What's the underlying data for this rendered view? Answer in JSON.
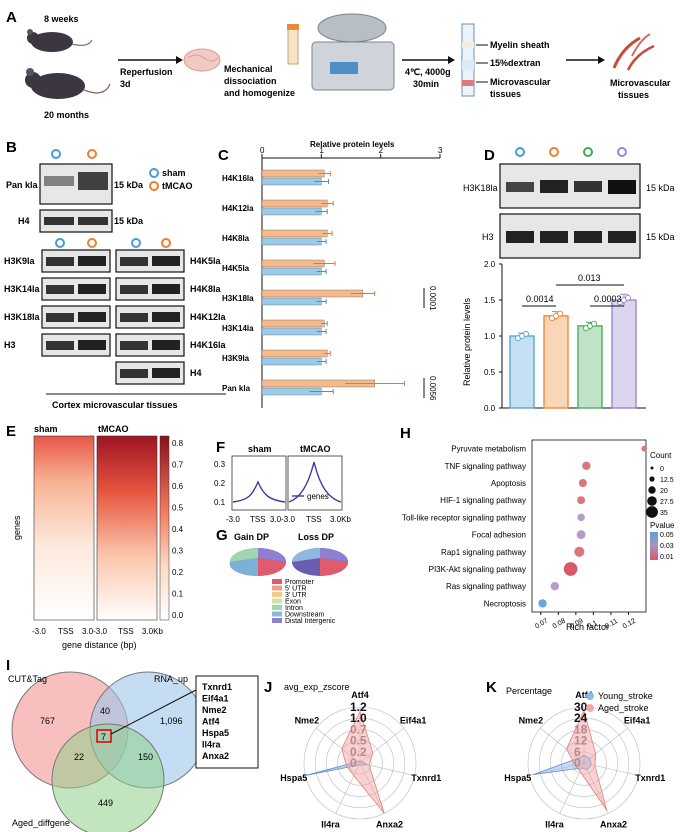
{
  "panelA": {
    "label": "A",
    "age_young": "8 weeks",
    "age_old": "20 months",
    "step1": [
      "Reperfusion",
      "3d"
    ],
    "step2": [
      "Mechanical",
      "dissociation",
      "and homogenize"
    ],
    "step3": [
      "4℃, 4000g",
      "30min"
    ],
    "layers": [
      "Myelin sheath",
      "15%dextran",
      "Microvascular",
      "tissues"
    ],
    "result": [
      "Microvascular",
      "tissues"
    ]
  },
  "panelB": {
    "label": "B",
    "legend": [
      "sham",
      "tMCAO"
    ],
    "blots_top": [
      {
        "name": "Pan kla",
        "kda": "15 kDa"
      },
      {
        "name": "H4",
        "kda": "15 kDa"
      }
    ],
    "left_blots": [
      "H3K9la",
      "H3K14la",
      "H3K18la",
      "H3"
    ],
    "right_blots": [
      "H4K5la",
      "H4K8la",
      "H4K12la",
      "H4K16la",
      "H4"
    ],
    "footer": "Cortex microvascular tissues"
  },
  "panelC": {
    "label": "C"
  },
  "panelD": {
    "label": "D",
    "blots": [
      {
        "name": "H3K18la",
        "kda": "15 kDa"
      },
      {
        "name": "H3",
        "kda": "15 kDa"
      }
    ],
    "pvals": [
      "0.0014",
      "0.013",
      "0.0003"
    ]
  },
  "panelE": {
    "label": "E",
    "cols": [
      "sham",
      "tMCAO"
    ],
    "ylabel": "genes",
    "xticks": [
      "-3.0",
      "TSS",
      "3.0-3.0",
      "TSS",
      "3.0Kb"
    ],
    "xlabel": "gene distance (bp)",
    "scale": [
      "0.8",
      "0.7",
      "0.6",
      "0.5",
      "0.4",
      "0.3",
      "0.2",
      "0.1",
      "0.0"
    ]
  },
  "panelF": {
    "label": "F",
    "cols": [
      "sham",
      "tMCAO"
    ],
    "yticks": [
      "0.3",
      "0.2",
      "0.1"
    ],
    "xticks": [
      "-3.0",
      "TSS",
      "3.0-3.0",
      "TSS",
      "3.0Kb"
    ],
    "legend": "genes"
  },
  "panelG": {
    "label": "G",
    "titles": [
      "Gain DP",
      "Loss DP"
    ],
    "legend": [
      "Promoter",
      "5' UTR",
      "3' UTR",
      "Exon",
      "Intron",
      "Downstream",
      "Distal Intergenic"
    ],
    "colors": [
      "#e15b6e",
      "#f0a07c",
      "#f2c98a",
      "#cfe3a6",
      "#9fd6b0",
      "#8fb8de",
      "#8f7fd2"
    ]
  },
  "panelH": {
    "label": "H"
  },
  "panelI": {
    "label": "I",
    "sets": [
      "CUT&Tag",
      "RNA_up",
      "Aged_diffgene"
    ],
    "counts": [
      "767",
      "40",
      "1,096",
      "7",
      "22",
      "150",
      "449"
    ],
    "genes": [
      "Txnrd1",
      "Eif4a1",
      "Nme2",
      "Atf4",
      "Hspa5",
      "Il4ra",
      "Anxa2"
    ]
  },
  "panelJ": {
    "label": "J",
    "title": "avg_exp_zscore",
    "rings": [
      "1.2",
      "1.0",
      "0.7",
      "0.5",
      "0.2",
      "0"
    ],
    "axes": [
      "Atf4",
      "Eif4a1",
      "Txnrd1",
      "Anxa2",
      "Il4ra",
      "Hspa5",
      "Nme2"
    ]
  },
  "panelK": {
    "label": "K",
    "title": "Percentage",
    "rings": [
      "30",
      "24",
      "18",
      "12",
      "6",
      "0"
    ],
    "axes": [
      "Atf4",
      "Eif4a1",
      "Txnrd1",
      "Anxa2",
      "Il4ra",
      "Hspa5",
      "Nme2"
    ],
    "legend": [
      "Young_stroke",
      "Aged_stroke"
    ]
  },
  "chart_data": [
    {
      "id": "C",
      "type": "bar",
      "orientation": "horizontal",
      "title": "Relative protein levels",
      "xlim": [
        0,
        3
      ],
      "xticks": [
        "0",
        "1",
        "2",
        "3"
      ],
      "categories": [
        "H4K16la",
        "H4K12la",
        "H4K8la",
        "H4K5la",
        "H3K18la",
        "H3K14la",
        "H3K9la",
        "Pan kla"
      ],
      "series": [
        {
          "name": "tMCAO",
          "color": "#f6b98c",
          "values": [
            1.05,
            1.1,
            1.1,
            1.05,
            1.7,
            1.05,
            1.1,
            1.9
          ],
          "errors": [
            0.1,
            0.1,
            0.08,
            0.18,
            0.2,
            0.05,
            0.05,
            0.5
          ]
        },
        {
          "name": "sham",
          "color": "#9ccbe9",
          "values": [
            1.0,
            1.0,
            1.0,
            1.0,
            1.0,
            1.0,
            1.0,
            1.0
          ],
          "errors": [
            0.12,
            0.1,
            0.08,
            0.08,
            0.08,
            0.08,
            0.08,
            0.2
          ]
        }
      ],
      "annotations": [
        {
          "category": "H3K18la",
          "text": "0.0001"
        },
        {
          "category": "Pan kla",
          "text": "0.0056"
        }
      ]
    },
    {
      "id": "D",
      "type": "bar",
      "ylabel": "Relative protein levels",
      "ylim": [
        0,
        2.0
      ],
      "yticks": [
        "0.0",
        "0.5",
        "1.0",
        "1.5",
        "2.0"
      ],
      "categories": [
        "g1",
        "g2",
        "g3",
        "g4"
      ],
      "values": [
        1.0,
        1.28,
        1.14,
        1.5
      ],
      "errors": [
        0.04,
        0.06,
        0.05,
        0.08
      ],
      "colors": [
        "#5aa7dc",
        "#f08a35",
        "#4bb060",
        "#9c86cf"
      ]
    },
    {
      "id": "H",
      "type": "scatter",
      "xlabel": "Rich factor",
      "xlim": [
        0.065,
        0.13
      ],
      "xticks": [
        "0.07",
        "0.08",
        "0.09",
        "0.1",
        "0.11",
        "0.12"
      ],
      "categories": [
        "Pyruvate metabolism",
        "TNF signaling pathway",
        "Apoptosis",
        "HIF-1 signaling pathway",
        "Toll-like receptor signaling pathway",
        "Focal adhesion",
        "Rap1 signaling pathway",
        "PI3K-Akt signaling pathway",
        "Ras signaling pathway",
        "Necroptosis"
      ],
      "x": [
        0.129,
        0.096,
        0.094,
        0.093,
        0.093,
        0.093,
        0.092,
        0.087,
        0.078,
        0.071
      ],
      "count": [
        4,
        10,
        9,
        9,
        8,
        11,
        14,
        22,
        10,
        10
      ],
      "pvalue": [
        0.02,
        0.02,
        0.025,
        0.02,
        0.035,
        0.03,
        0.02,
        0.01,
        0.04,
        0.05
      ],
      "legend_count_title": "Count",
      "legend_count": [
        "0",
        "12.5",
        "20",
        "27.5",
        "35"
      ],
      "legend_p_title": "Pvalue",
      "legend_p": [
        "0.05",
        "0.03",
        "0.01"
      ]
    },
    {
      "id": "J",
      "type": "radar",
      "rmax": 1.2,
      "axes": [
        "Atf4",
        "Eif4a1",
        "Txnrd1",
        "Anxa2",
        "Il4ra",
        "Hspa5",
        "Nme2"
      ],
      "series": [
        {
          "name": "Young_stroke",
          "values": [
            0.05,
            0.05,
            0.15,
            0.05,
            0.05,
            1.2,
            0.05
          ]
        },
        {
          "name": "Aged_stroke",
          "values": [
            1.1,
            0.35,
            0.2,
            1.2,
            0.3,
            0.3,
            0.5
          ]
        }
      ]
    },
    {
      "id": "K",
      "type": "radar",
      "rmax": 30,
      "axes": [
        "Atf4",
        "Eif4a1",
        "Txnrd1",
        "Anxa2",
        "Il4ra",
        "Hspa5",
        "Nme2"
      ],
      "series": [
        {
          "name": "Young_stroke",
          "values": [
            4,
            4,
            4,
            4,
            3,
            28,
            4
          ]
        },
        {
          "name": "Aged_stroke",
          "values": [
            28,
            8,
            6,
            28,
            5,
            5,
            12
          ]
        }
      ]
    }
  ]
}
